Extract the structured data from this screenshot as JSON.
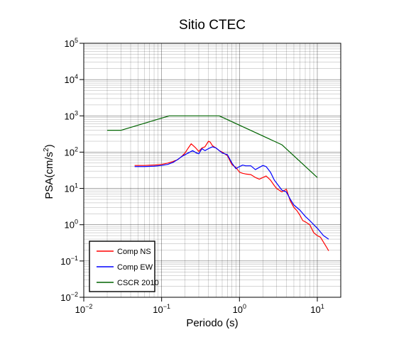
{
  "chart_data": {
    "type": "line",
    "title": "Sitio CTEC",
    "xlabel": "Periodo (s)",
    "ylabel_base": "PSA(cm/s",
    "ylabel_sup": "2",
    "ylabel_close": ")",
    "x_scale": "log",
    "y_scale": "log",
    "xlim": [
      0.01,
      20
    ],
    "ylim": [
      0.01,
      100000
    ],
    "x_ticks": [
      {
        "value": 0.01,
        "base": "10",
        "exp": "−2"
      },
      {
        "value": 0.1,
        "base": "10",
        "exp": "−1"
      },
      {
        "value": 1,
        "base": "10",
        "exp": "0"
      },
      {
        "value": 10,
        "base": "10",
        "exp": "1"
      }
    ],
    "y_ticks": [
      {
        "value": 0.01,
        "base": "10",
        "exp": "−2"
      },
      {
        "value": 0.1,
        "base": "10",
        "exp": "−1"
      },
      {
        "value": 1,
        "base": "10",
        "exp": "0"
      },
      {
        "value": 10,
        "base": "10",
        "exp": "1"
      },
      {
        "value": 100,
        "base": "10",
        "exp": "2"
      },
      {
        "value": 1000,
        "base": "10",
        "exp": "3"
      },
      {
        "value": 10000,
        "base": "10",
        "exp": "4"
      },
      {
        "value": 100000,
        "base": "10",
        "exp": "5"
      }
    ],
    "grid": true,
    "legend_position": "bottom-left",
    "series": [
      {
        "name": "Comp NS",
        "color": "#ff0000",
        "x": [
          0.045,
          0.06,
          0.08,
          0.1,
          0.12,
          0.14,
          0.16,
          0.18,
          0.2,
          0.22,
          0.24,
          0.27,
          0.3,
          0.33,
          0.36,
          0.4,
          0.42,
          0.45,
          0.5,
          0.55,
          0.6,
          0.7,
          0.8,
          0.9,
          1.0,
          1.1,
          1.2,
          1.4,
          1.6,
          1.8,
          2.0,
          2.2,
          2.5,
          2.8,
          3.0,
          3.5,
          4.0,
          4.5,
          5.0,
          5.5,
          6.0,
          6.5,
          7.0,
          8.0,
          9.0,
          10.0,
          11.0,
          12.0,
          13.0,
          14.0
        ],
        "y": [
          43,
          43,
          44,
          46,
          50,
          55,
          62,
          75,
          95,
          130,
          170,
          135,
          105,
          130,
          140,
          200,
          190,
          150,
          130,
          110,
          100,
          80,
          45,
          38,
          28,
          26,
          25,
          24,
          20,
          18,
          20,
          22,
          17,
          12,
          10,
          8,
          9.5,
          4.5,
          3.0,
          2.4,
          1.8,
          1.3,
          1.2,
          1.0,
          0.6,
          0.5,
          0.45,
          0.33,
          0.25,
          0.19
        ]
      },
      {
        "name": "Comp EW",
        "color": "#0000ff",
        "x": [
          0.045,
          0.06,
          0.08,
          0.1,
          0.12,
          0.14,
          0.16,
          0.18,
          0.2,
          0.22,
          0.25,
          0.28,
          0.3,
          0.33,
          0.36,
          0.4,
          0.45,
          0.5,
          0.55,
          0.6,
          0.7,
          0.8,
          0.9,
          1.0,
          1.1,
          1.2,
          1.4,
          1.6,
          1.8,
          2.0,
          2.2,
          2.5,
          2.8,
          3.0,
          3.5,
          4.0,
          4.5,
          5.0,
          6.0,
          7.0,
          8.0,
          9.0,
          10.0,
          12.0,
          14.0
        ],
        "y": [
          40,
          40,
          41,
          43,
          46,
          52,
          62,
          75,
          85,
          95,
          110,
          95,
          90,
          125,
          110,
          125,
          140,
          130,
          110,
          95,
          85,
          50,
          35,
          40,
          44,
          42,
          42,
          33,
          38,
          43,
          40,
          28,
          17,
          14,
          9,
          8,
          5,
          3.5,
          2.5,
          1.7,
          1.3,
          1.0,
          0.8,
          0.5,
          0.4
        ]
      },
      {
        "name": "CSCR 2010",
        "color": "#006400",
        "x": [
          0.02,
          0.03,
          0.125,
          0.55,
          3.5,
          10
        ],
        "y": [
          400,
          400,
          1000,
          1000,
          160,
          20
        ]
      }
    ]
  }
}
